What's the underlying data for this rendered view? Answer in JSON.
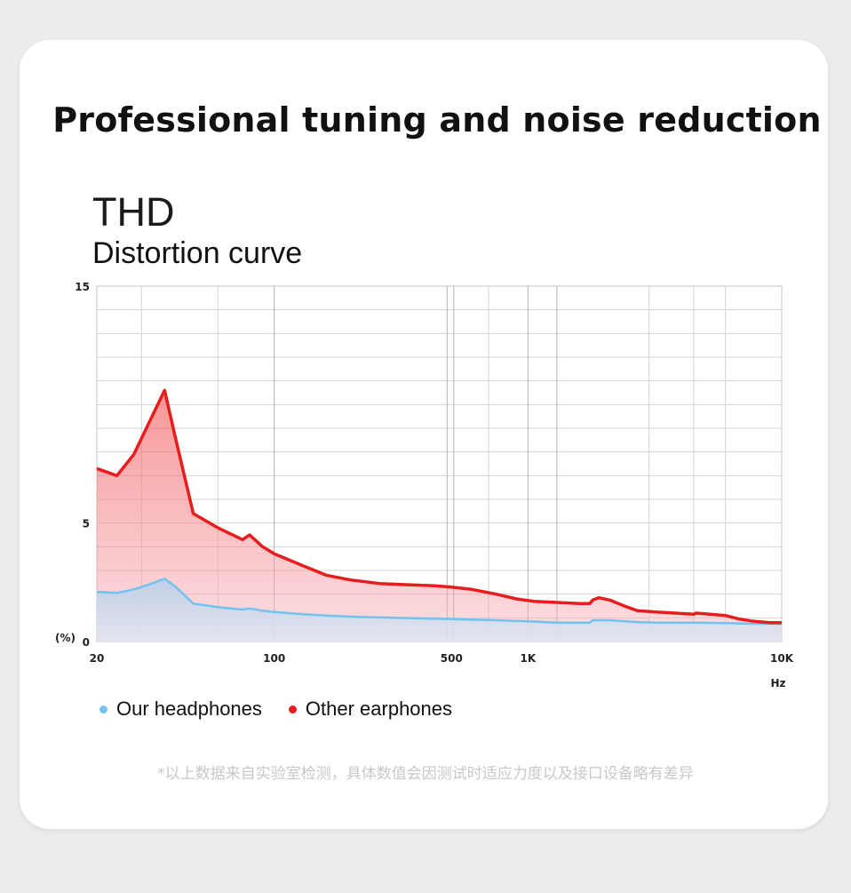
{
  "headline": "Professional tuning and noise reduction",
  "title": "THD",
  "subtitle": "Distortion curve",
  "footnote": "*以上数据来自实验室检测，具体数值会因测试时适应力度以及接口设备略有差异",
  "colors": {
    "our": "#6fc3ee",
    "other": "#e81c1c",
    "grid": "#d6d6d6",
    "axis_text": "#222222"
  },
  "chart_data": {
    "type": "area",
    "xscale": "log",
    "xlim": [
      20,
      10000
    ],
    "ylim": [
      0,
      15
    ],
    "ylabel": "(%)",
    "xlabel_unit": "Hz",
    "y_ticks": [
      {
        "value": 0,
        "label": "0"
      },
      {
        "value": 5,
        "label": "5"
      },
      {
        "value": 15,
        "label": "15"
      }
    ],
    "x_ticks": [
      {
        "value": 20,
        "label": "20"
      },
      {
        "value": 100,
        "label": "100"
      },
      {
        "value": 500,
        "label": "500"
      },
      {
        "value": 1000,
        "label": "1K"
      },
      {
        "value": 10000,
        "label": "10K"
      }
    ],
    "x_gridlines": [
      20,
      30,
      60,
      100,
      480,
      510,
      700,
      1000,
      1300,
      3000,
      4500,
      6000,
      10000
    ],
    "y_gridlines": [
      0,
      1,
      2,
      3,
      4,
      5,
      6,
      7,
      8,
      9,
      10,
      11,
      12,
      13,
      14,
      15
    ],
    "series": [
      {
        "name": "Other earphones",
        "color": "#e81c1c",
        "points": [
          [
            20,
            7.3
          ],
          [
            24,
            7.0
          ],
          [
            28,
            7.9
          ],
          [
            33,
            9.5
          ],
          [
            37,
            10.6
          ],
          [
            41,
            8.5
          ],
          [
            48,
            5.4
          ],
          [
            60,
            4.8
          ],
          [
            75,
            4.3
          ],
          [
            80,
            4.5
          ],
          [
            90,
            4.0
          ],
          [
            100,
            3.7
          ],
          [
            130,
            3.2
          ],
          [
            160,
            2.8
          ],
          [
            200,
            2.6
          ],
          [
            260,
            2.45
          ],
          [
            330,
            2.4
          ],
          [
            430,
            2.35
          ],
          [
            500,
            2.3
          ],
          [
            600,
            2.2
          ],
          [
            750,
            2.0
          ],
          [
            900,
            1.8
          ],
          [
            1050,
            1.7
          ],
          [
            1300,
            1.65
          ],
          [
            1600,
            1.6
          ],
          [
            1750,
            1.6
          ],
          [
            1800,
            1.75
          ],
          [
            1900,
            1.85
          ],
          [
            2100,
            1.75
          ],
          [
            2400,
            1.5
          ],
          [
            2700,
            1.3
          ],
          [
            3200,
            1.25
          ],
          [
            3800,
            1.2
          ],
          [
            4500,
            1.15
          ],
          [
            4600,
            1.2
          ],
          [
            5200,
            1.15
          ],
          [
            6000,
            1.1
          ],
          [
            6800,
            0.95
          ],
          [
            7800,
            0.85
          ],
          [
            9000,
            0.8
          ],
          [
            10000,
            0.8
          ]
        ]
      },
      {
        "name": "Our headphones",
        "color": "#6fc3ee",
        "points": [
          [
            20,
            2.1
          ],
          [
            24,
            2.05
          ],
          [
            28,
            2.2
          ],
          [
            33,
            2.45
          ],
          [
            37,
            2.65
          ],
          [
            41,
            2.3
          ],
          [
            48,
            1.6
          ],
          [
            60,
            1.45
          ],
          [
            75,
            1.35
          ],
          [
            80,
            1.4
          ],
          [
            90,
            1.3
          ],
          [
            100,
            1.25
          ],
          [
            130,
            1.15
          ],
          [
            160,
            1.1
          ],
          [
            200,
            1.05
          ],
          [
            300,
            1.0
          ],
          [
            500,
            0.95
          ],
          [
            750,
            0.9
          ],
          [
            1000,
            0.85
          ],
          [
            1300,
            0.8
          ],
          [
            1600,
            0.8
          ],
          [
            1750,
            0.8
          ],
          [
            1800,
            0.9
          ],
          [
            2100,
            0.9
          ],
          [
            2700,
            0.82
          ],
          [
            3200,
            0.8
          ],
          [
            4500,
            0.8
          ],
          [
            6000,
            0.78
          ],
          [
            7800,
            0.75
          ],
          [
            10000,
            0.75
          ]
        ]
      }
    ]
  }
}
